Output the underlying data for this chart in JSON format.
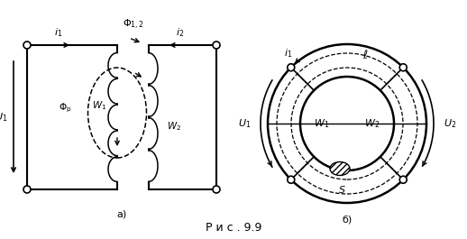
{
  "background_color": "#ffffff",
  "fig_width": 5.18,
  "fig_height": 2.65,
  "dpi": 100,
  "caption": "Р и с . 9.9",
  "label_a": "а)",
  "label_b": "б)",
  "font_size_caption": 9,
  "font_size_labels": 8,
  "font_size_small": 7.5
}
